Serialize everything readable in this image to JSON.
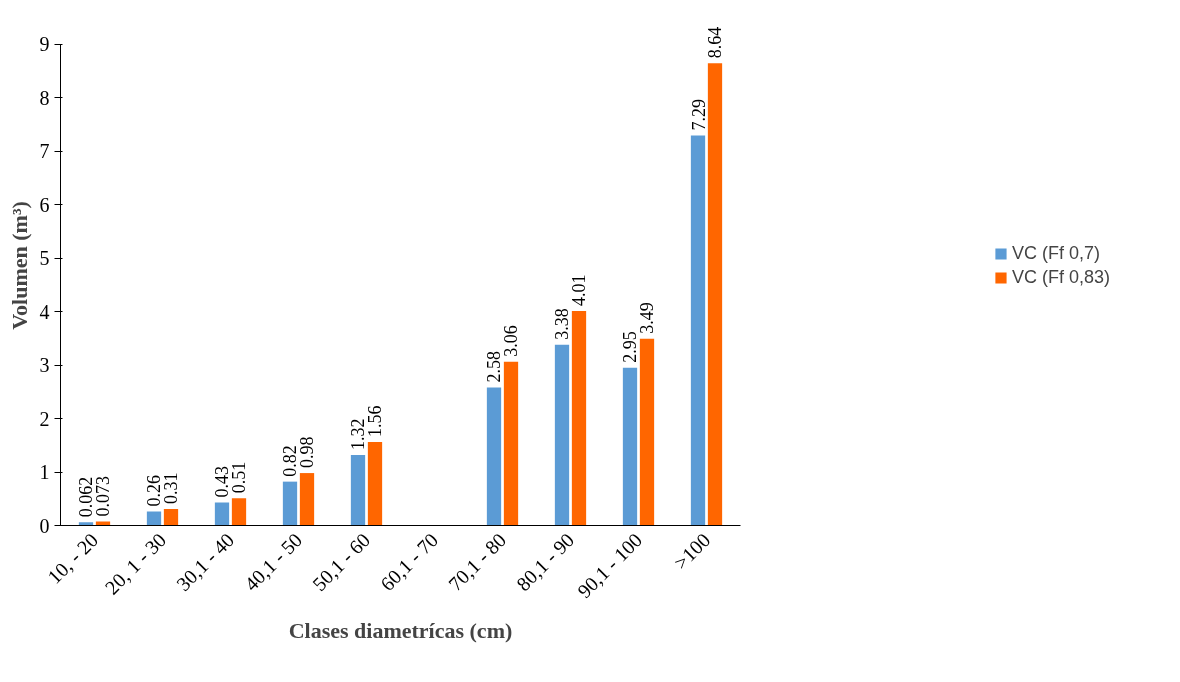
{
  "chart_data": {
    "type": "bar",
    "xlabel": "Clases diametrícas (cm)",
    "ylabel": "Volumen (m³)",
    "categories": [
      "10, - 20",
      "20, 1 - 30",
      "30,1 - 40",
      "40,1 - 50",
      "50,1 - 60",
      "60,1 - 70",
      "70,1 - 80",
      "80,1 - 90",
      "90,1 - 100",
      ">100"
    ],
    "series": [
      {
        "name": "VC (Ff 0,7)",
        "color": "#5b9bd5",
        "values": [
          0.062,
          0.26,
          0.43,
          0.82,
          1.32,
          null,
          2.58,
          3.38,
          2.95,
          7.29
        ]
      },
      {
        "name": "VC (Ff 0,83)",
        "color": "#ff6600",
        "values": [
          0.073,
          0.31,
          0.51,
          0.98,
          1.56,
          null,
          3.06,
          4.01,
          3.49,
          8.64
        ]
      }
    ],
    "ylim": [
      0,
      9
    ],
    "yticks": [
      0,
      1,
      2,
      3,
      4,
      5,
      6,
      7,
      8,
      9
    ],
    "grid": false,
    "legend": "right",
    "data_labels": true
  }
}
